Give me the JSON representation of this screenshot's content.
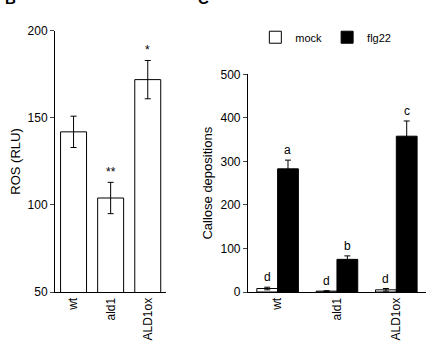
{
  "chart_data": [
    {
      "type": "bar",
      "title": "B",
      "categories": [
        "wt",
        "ald1",
        "ALD1ox"
      ],
      "y_label": "ROS (RLU)",
      "ylim": [
        50,
        200
      ],
      "yticks": [
        50,
        100,
        150,
        200
      ],
      "series": [
        {
          "color": "#ffffff",
          "values": [
            142,
            104,
            172
          ],
          "errors": [
            9,
            9,
            11
          ],
          "annotations": [
            null,
            "**",
            "*"
          ]
        }
      ]
    },
    {
      "type": "bar",
      "title": "C",
      "categories": [
        "wt",
        "ald1",
        "ALD1ox"
      ],
      "y_label": "Callose depositions",
      "ylim": [
        0,
        500
      ],
      "yticks": [
        0,
        100,
        200,
        300,
        400,
        500
      ],
      "legend": "top left",
      "series": [
        {
          "name": "mock",
          "color": "#ffffff",
          "values": [
            8,
            2,
            5
          ],
          "errors": [
            3,
            1,
            3
          ],
          "annotations": [
            "d",
            "d",
            "d"
          ]
        },
        {
          "name": "flg22",
          "color": "#000000",
          "values": [
            283,
            75,
            358
          ],
          "errors": [
            20,
            8,
            35
          ],
          "annotations": [
            "a",
            "b",
            "c"
          ]
        }
      ]
    }
  ]
}
